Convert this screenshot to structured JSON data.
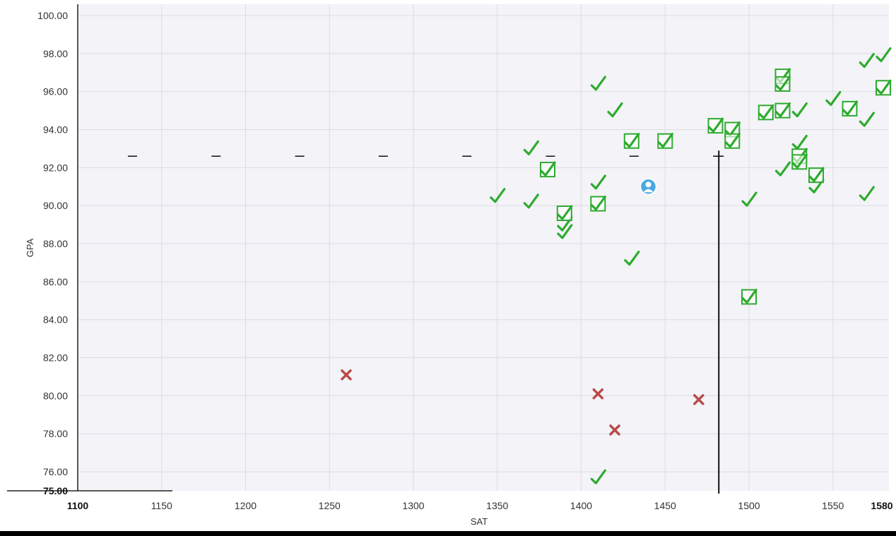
{
  "chart_data": {
    "type": "scatter",
    "title": "",
    "xlabel": "SAT",
    "ylabel": "GPA",
    "xlim": [
      1100,
      1580
    ],
    "ylim": [
      75,
      100
    ],
    "grid": true,
    "legend": "none",
    "x_ticks": [
      "1100",
      "1150",
      "1200",
      "1250",
      "1300",
      "1350",
      "1400",
      "1450",
      "1500",
      "1550",
      "1580"
    ],
    "y_ticks": [
      "75.00",
      "76.00",
      "78.00",
      "80.00",
      "82.00",
      "84.00",
      "86.00",
      "88.00",
      "90.00",
      "92.00",
      "94.00",
      "96.00",
      "98.00",
      "100.00"
    ],
    "reference_lines": {
      "gpa_line": 92.6,
      "sat_line": 1482
    },
    "series": [
      {
        "marker": "check",
        "color": "#2eab2e",
        "points": [
          {
            "x": 1350,
            "y": 90.5
          },
          {
            "x": 1370,
            "y": 93.0
          },
          {
            "x": 1370,
            "y": 90.2
          },
          {
            "x": 1390,
            "y": 89.0
          },
          {
            "x": 1390,
            "y": 88.6
          },
          {
            "x": 1410,
            "y": 96.4
          },
          {
            "x": 1410,
            "y": 91.2
          },
          {
            "x": 1420,
            "y": 95.0
          },
          {
            "x": 1430,
            "y": 87.2
          },
          {
            "x": 1410,
            "y": 75.7
          },
          {
            "x": 1500,
            "y": 90.3
          },
          {
            "x": 1520,
            "y": 91.9
          },
          {
            "x": 1530,
            "y": 95.0
          },
          {
            "x": 1530,
            "y": 93.3
          },
          {
            "x": 1540,
            "y": 91.0
          },
          {
            "x": 1550,
            "y": 95.6
          },
          {
            "x": 1570,
            "y": 97.6
          },
          {
            "x": 1580,
            "y": 97.9
          },
          {
            "x": 1570,
            "y": 94.5
          },
          {
            "x": 1570,
            "y": 90.6
          }
        ]
      },
      {
        "marker": "boxed-check",
        "color": "#2eab2e",
        "points": [
          {
            "x": 1380,
            "y": 91.9
          },
          {
            "x": 1390,
            "y": 89.6
          },
          {
            "x": 1410,
            "y": 90.1
          },
          {
            "x": 1430,
            "y": 93.4
          },
          {
            "x": 1450,
            "y": 93.4
          },
          {
            "x": 1480,
            "y": 94.2
          },
          {
            "x": 1490,
            "y": 94.0
          },
          {
            "x": 1490,
            "y": 93.4
          },
          {
            "x": 1500,
            "y": 85.2
          },
          {
            "x": 1510,
            "y": 94.9
          },
          {
            "x": 1520,
            "y": 96.8
          },
          {
            "x": 1520,
            "y": 96.4
          },
          {
            "x": 1520,
            "y": 95.0
          },
          {
            "x": 1530,
            "y": 92.6
          },
          {
            "x": 1530,
            "y": 92.3
          },
          {
            "x": 1540,
            "y": 91.6
          },
          {
            "x": 1560,
            "y": 95.1
          },
          {
            "x": 1580,
            "y": 96.2
          }
        ]
      },
      {
        "marker": "x",
        "color": "#b94a48",
        "points": [
          {
            "x": 1260,
            "y": 81.1
          },
          {
            "x": 1410,
            "y": 80.1
          },
          {
            "x": 1420,
            "y": 78.2
          },
          {
            "x": 1470,
            "y": 79.8
          }
        ]
      },
      {
        "marker": "user",
        "color": "#4aa8e0",
        "points": [
          {
            "x": 1440,
            "y": 91.0
          }
        ]
      }
    ]
  }
}
